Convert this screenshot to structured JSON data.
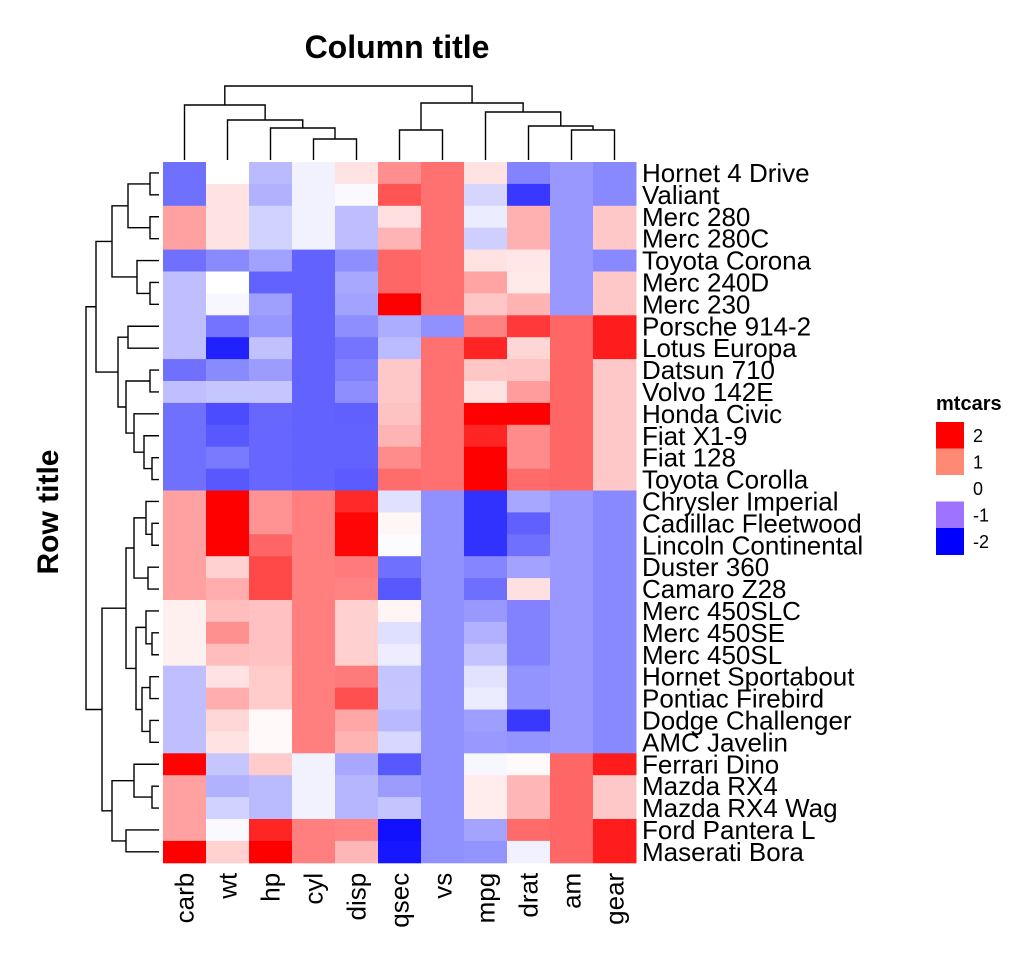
{
  "chart_data": {
    "type": "heatmap",
    "column_title": "Column title",
    "row_title": "Row title",
    "columns": [
      "carb",
      "wt",
      "hp",
      "cyl",
      "disp",
      "qsec",
      "vs",
      "mpg",
      "drat",
      "am",
      "gear"
    ],
    "rows": [
      "Hornet 4 Drive",
      "Valiant",
      "Merc 280",
      "Merc 280C",
      "Toyota Corona",
      "Merc 240D",
      "Merc 230",
      "Porsche 914-2",
      "Lotus Europa",
      "Datsun 710",
      "Volvo 142E",
      "Honda Civic",
      "Fiat X1-9",
      "Fiat 128",
      "Toyota Corolla",
      "Chrysler Imperial",
      "Cadillac Fleetwood",
      "Lincoln Continental",
      "Duster 360",
      "Camaro Z28",
      "Merc 450SLC",
      "Merc 450SE",
      "Merc 450SL",
      "Hornet Sportabout",
      "Pontiac Firebird",
      "Dodge Challenger",
      "AMC Javelin",
      "Ferrari Dino",
      "Mazda RX4",
      "Mazda RX4 Wag",
      "Ford Pantera L",
      "Maserati Bora"
    ],
    "values": [
      [
        -1.12,
        0.0,
        -0.54,
        -0.1,
        0.22,
        0.89,
        1.12,
        0.22,
        -0.97,
        -0.81,
        -0.93
      ],
      [
        -1.12,
        0.23,
        -0.61,
        -0.1,
        -0.05,
        1.33,
        1.12,
        -0.33,
        -1.56,
        -0.81,
        -0.93
      ],
      [
        0.74,
        0.23,
        -0.35,
        -0.1,
        -0.51,
        0.25,
        1.12,
        -0.15,
        0.61,
        -0.81,
        0.43
      ],
      [
        0.74,
        0.23,
        -0.35,
        -0.1,
        -0.51,
        0.59,
        1.12,
        -0.38,
        0.61,
        -0.81,
        0.43
      ],
      [
        -1.12,
        -0.92,
        -0.74,
        -1.23,
        -0.89,
        1.2,
        1.12,
        0.23,
        0.19,
        -0.81,
        -0.93
      ],
      [
        -0.5,
        -0.0,
        -1.23,
        -1.23,
        -0.68,
        1.2,
        1.12,
        0.72,
        0.17,
        -0.81,
        0.43
      ],
      [
        -0.5,
        -0.06,
        -0.75,
        -1.23,
        -0.72,
        2.83,
        1.12,
        0.45,
        0.6,
        -0.81,
        0.43
      ],
      [
        -0.5,
        -1.1,
        -0.82,
        -1.23,
        -0.89,
        -0.64,
        -0.87,
        0.98,
        1.55,
        1.19,
        1.78
      ],
      [
        -0.5,
        -1.74,
        -0.49,
        -1.23,
        -1.09,
        -0.53,
        1.12,
        1.71,
        0.32,
        1.19,
        1.78
      ],
      [
        -1.12,
        -0.92,
        -0.78,
        -1.23,
        -0.99,
        0.43,
        1.12,
        0.45,
        0.47,
        1.19,
        0.43
      ],
      [
        -0.5,
        -0.45,
        -0.45,
        -1.23,
        -0.89,
        0.43,
        1.12,
        0.22,
        0.78,
        1.19,
        0.43
      ],
      [
        -1.12,
        -1.41,
        -1.19,
        -1.23,
        -1.25,
        0.48,
        1.12,
        2.04,
        2.49,
        1.19,
        0.43
      ],
      [
        -1.12,
        -1.31,
        -1.19,
        -1.23,
        -1.23,
        0.59,
        1.12,
        1.71,
        0.91,
        1.19,
        0.43
      ],
      [
        -1.12,
        -1.04,
        -1.19,
        -1.23,
        -1.23,
        0.91,
        1.12,
        2.29,
        0.91,
        1.19,
        0.43
      ],
      [
        -1.12,
        -1.31,
        -1.19,
        -1.23,
        -1.29,
        1.15,
        1.12,
        2.29,
        1.17,
        1.19,
        0.43
      ],
      [
        0.74,
        2.08,
        0.85,
        1.01,
        1.68,
        -0.24,
        -0.87,
        -1.61,
        -0.69,
        -0.81,
        -0.93
      ],
      [
        0.74,
        2.08,
        0.85,
        1.01,
        1.95,
        0.07,
        -0.87,
        -1.61,
        -1.25,
        -0.81,
        -0.93
      ],
      [
        0.74,
        2.26,
        1.21,
        1.01,
        1.95,
        -0.02,
        -0.87,
        -1.61,
        -1.12,
        -0.81,
        -0.93
      ],
      [
        0.74,
        0.36,
        1.43,
        1.01,
        1.04,
        -1.12,
        -0.87,
        -0.96,
        -0.72,
        -0.81,
        -0.93
      ],
      [
        0.74,
        0.64,
        1.43,
        1.01,
        0.97,
        -1.31,
        -0.87,
        -1.13,
        0.24,
        -0.81,
        -0.93
      ],
      [
        0.12,
        0.52,
        0.49,
        1.01,
        0.37,
        0.08,
        -0.87,
        -0.81,
        -0.98,
        -0.81,
        -0.93
      ],
      [
        0.12,
        0.87,
        0.49,
        1.01,
        0.37,
        -0.25,
        -0.87,
        -0.61,
        -0.98,
        -0.81,
        -0.93
      ],
      [
        0.12,
        0.52,
        0.49,
        1.01,
        0.37,
        -0.14,
        -0.87,
        -0.47,
        -0.98,
        -0.81,
        -0.93
      ],
      [
        -0.5,
        0.23,
        0.41,
        1.01,
        1.04,
        -0.46,
        -0.87,
        -0.23,
        -0.84,
        -0.81,
        -0.93
      ],
      [
        -0.5,
        0.64,
        0.41,
        1.01,
        1.37,
        -0.45,
        -0.87,
        -0.15,
        -0.84,
        -0.81,
        -0.93
      ],
      [
        -0.5,
        0.31,
        0.05,
        1.01,
        0.69,
        -0.55,
        -0.87,
        -0.76,
        -1.56,
        -0.81,
        -0.93
      ],
      [
        -0.5,
        0.23,
        0.05,
        1.01,
        0.59,
        -0.31,
        -0.87,
        -0.81,
        -0.84,
        -0.81,
        -0.93
      ],
      [
        1.98,
        -0.45,
        0.41,
        -0.1,
        -0.69,
        -1.31,
        -0.87,
        -0.06,
        0.04,
        1.19,
        1.78
      ],
      [
        0.74,
        -0.61,
        -0.54,
        -0.1,
        -0.57,
        -0.78,
        -0.87,
        0.15,
        0.57,
        1.19,
        0.43
      ],
      [
        0.74,
        -0.35,
        -0.54,
        -0.1,
        -0.57,
        -0.46,
        -0.87,
        0.15,
        0.57,
        1.19,
        0.43
      ],
      [
        0.74,
        -0.05,
        1.71,
        1.01,
        0.97,
        -1.87,
        -0.87,
        -0.71,
        1.17,
        1.19,
        1.78
      ],
      [
        2.0,
        0.36,
        2.75,
        1.01,
        0.57,
        -1.82,
        -0.87,
        -0.84,
        -0.11,
        1.19,
        1.78
      ]
    ],
    "color_scale": [
      {
        "value": -2,
        "color": "#0000FF"
      },
      {
        "value": 0,
        "color": "#FFFFFF"
      },
      {
        "value": 2,
        "color": "#FF0000"
      }
    ],
    "legend": {
      "title": "mtcars",
      "labels": [
        "2",
        "1",
        "0",
        "-1",
        "-2"
      ],
      "colors": [
        "#FF0000",
        "#FF8A73",
        "#FFFFFF",
        "#9E73FF",
        "#0000FF"
      ],
      "position": "right"
    },
    "column_clusters": "carb, wt, hp, cyl, disp | qsec, vs, mpg, drat, am, gear",
    "row_clusters": "15 upper rows | 17 lower rows"
  }
}
